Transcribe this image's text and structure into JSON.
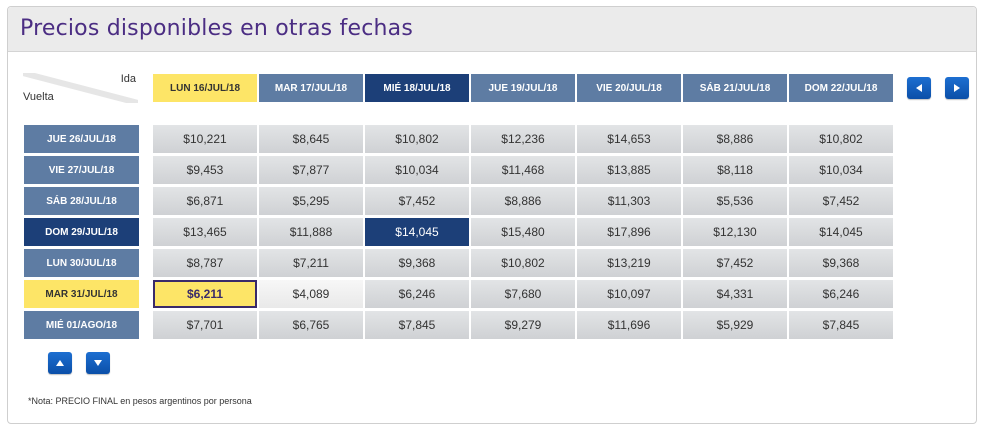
{
  "title": "Precios disponibles en otras fechas",
  "corner": {
    "ida": "Ida",
    "vuelta": "Vuelta"
  },
  "columns": [
    {
      "label": "LUN 16/JUL/18"
    },
    {
      "label": "MAR 17/JUL/18"
    },
    {
      "label": "MIÉ 18/JUL/18"
    },
    {
      "label": "JUE 19/JUL/18"
    },
    {
      "label": "VIE 20/JUL/18"
    },
    {
      "label": "SÁB 21/JUL/18"
    },
    {
      "label": "DOM 22/JUL/18"
    }
  ],
  "rows": [
    {
      "label": "JUE 26/JUL/18",
      "prices": [
        "$10,221",
        "$8,645",
        "$10,802",
        "$12,236",
        "$14,653",
        "$8,886",
        "$10,802"
      ]
    },
    {
      "label": "VIE 27/JUL/18",
      "prices": [
        "$9,453",
        "$7,877",
        "$10,034",
        "$11,468",
        "$13,885",
        "$8,118",
        "$10,034"
      ]
    },
    {
      "label": "SÁB 28/JUL/18",
      "prices": [
        "$6,871",
        "$5,295",
        "$7,452",
        "$8,886",
        "$11,303",
        "$5,536",
        "$7,452"
      ]
    },
    {
      "label": "DOM 29/JUL/18",
      "prices": [
        "$13,465",
        "$11,888",
        "$14,045",
        "$15,480",
        "$17,896",
        "$12,130",
        "$14,045"
      ]
    },
    {
      "label": "LUN 30/JUL/18",
      "prices": [
        "$8,787",
        "$7,211",
        "$9,368",
        "$10,802",
        "$13,219",
        "$7,452",
        "$9,368"
      ]
    },
    {
      "label": "MAR 31/JUL/18",
      "prices": [
        "$6,211",
        "$4,089",
        "$6,246",
        "$7,680",
        "$10,097",
        "$4,331",
        "$6,246"
      ]
    },
    {
      "label": "MIÉ 01/AGO/18",
      "prices": [
        "$7,701",
        "$6,765",
        "$7,845",
        "$9,279",
        "$11,696",
        "$5,929",
        "$7,845"
      ]
    }
  ],
  "note": "*Nota: PRECIO FINAL en pesos argentinos por persona",
  "colors": {
    "header_blue": "#5e7ca3",
    "selected_dark": "#1c3f78",
    "highlight_yellow": "#fde567",
    "title_purple": "#4b2d83",
    "button_blue": "#0b4fa8"
  },
  "icons": {
    "prev": "arrow-left-icon",
    "next": "arrow-right-icon",
    "up": "arrow-up-icon",
    "down": "arrow-down-icon"
  }
}
